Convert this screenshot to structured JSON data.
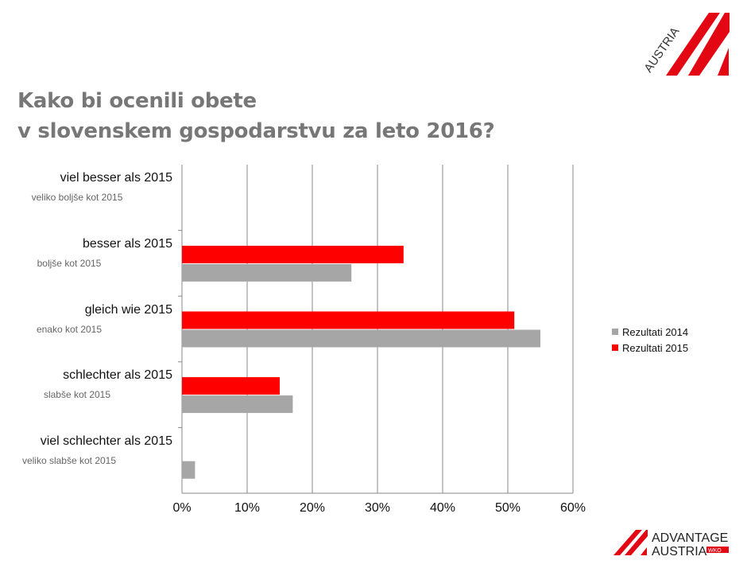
{
  "title_lines": [
    "Kako bi ocenili obete",
    "v slovenskem gospodarstvu za leto 2016?"
  ],
  "logos": {
    "top": "AUSTRIA",
    "bottom": [
      "ADVANTAGE",
      "AUSTRIA",
      "WKO"
    ]
  },
  "colors": {
    "series_2014": "#a6a6a6",
    "series_2015": "#ff0000",
    "brand_red": "#e30613"
  },
  "chart_data": {
    "type": "bar",
    "orientation": "horizontal",
    "categories": [
      "viel besser als 2015",
      "besser als 2015",
      "gleich wie 2015",
      "schlechter als 2015",
      "viel schlechter als 2015"
    ],
    "category_sublabels": [
      "veliko boljše kot 2015",
      "boljše kot 2015",
      "enako kot 2015",
      "slabše kot 2015",
      "veliko slabše kot 2015"
    ],
    "series": [
      {
        "name": "Rezultati 2014",
        "color": "#a6a6a6",
        "values": [
          0,
          26,
          55,
          17,
          2
        ]
      },
      {
        "name": "Rezultati 2015",
        "color": "#ff0000",
        "values": [
          0,
          34,
          51,
          15,
          0
        ]
      }
    ],
    "xlim": [
      0,
      60
    ],
    "x_ticks": [
      "0%",
      "10%",
      "20%",
      "30%",
      "40%",
      "50%",
      "60%"
    ],
    "grid": true,
    "legend_placement": "right"
  }
}
